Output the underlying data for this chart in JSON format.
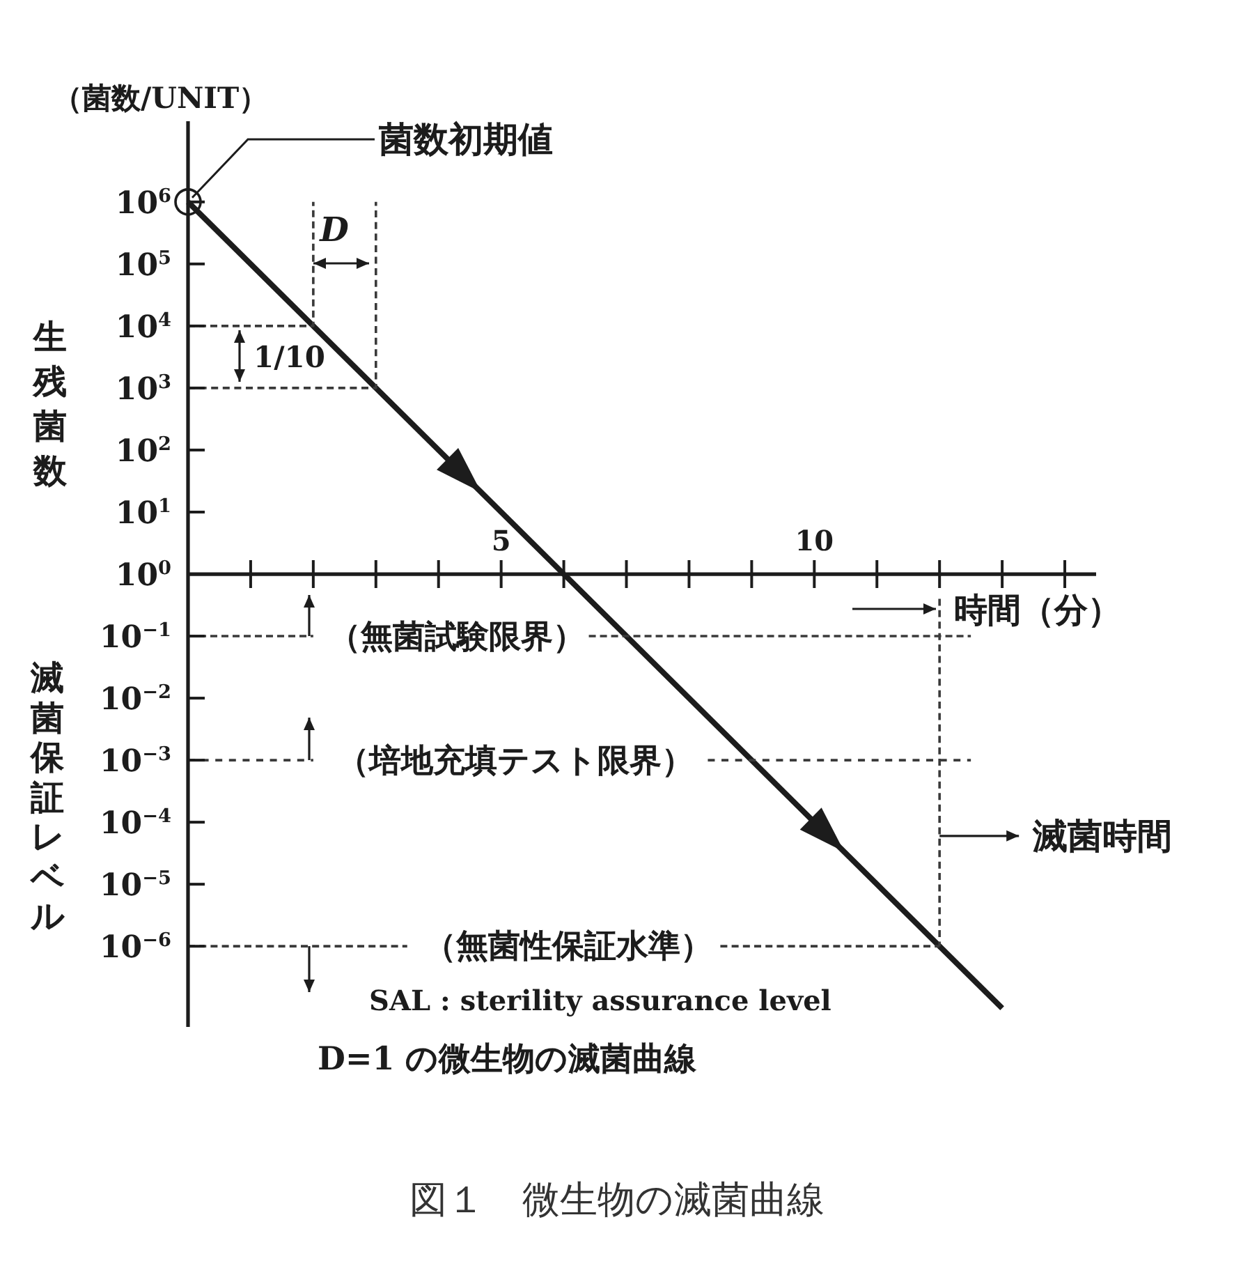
{
  "chart_data": [
    {
      "type": "line",
      "xlabel": "時間（分）",
      "ylabel": "生残菌数",
      "annotations": [
        "（菌数/UNIT）",
        {
          "text": "菌数初期値",
          "x": 0,
          "y": 1000000.0
        },
        "D",
        "1/10"
      ],
      "log": true,
      "xlim": [
        0,
        14.5
      ],
      "xticks": [
        {
          "value": 1,
          "label": null
        },
        {
          "value": 2,
          "label": null
        },
        {
          "value": 3,
          "label": null
        },
        {
          "value": 4,
          "label": null
        },
        5,
        {
          "value": 6,
          "label": null
        },
        {
          "value": 7,
          "label": null
        },
        {
          "value": 8,
          "label": null
        },
        {
          "value": 9,
          "label": null
        },
        10,
        {
          "value": 11,
          "label": null
        },
        {
          "value": 12,
          "label": null
        },
        {
          "value": 13,
          "label": null
        },
        {
          "value": 14,
          "label": null
        }
      ],
      "ylim": [
        1,
        20000000.0
      ],
      "yticks": [
        {
          "value": 1000000.0,
          "label": "10$^{6}$"
        },
        {
          "value": 100000.0,
          "label": "10$^{5}$"
        },
        {
          "value": 10000.0,
          "label": "10$^{4}$"
        },
        {
          "value": 1000.0,
          "label": "10$^{3}$"
        },
        {
          "value": 100.0,
          "label": "10$^{2}$"
        },
        {
          "value": 10.0,
          "label": "10$^{1}$"
        },
        {
          "value": 1,
          "label": "10$^{0}$"
        }
      ],
      "series": [
        {
          "x": [
            0,
            6
          ],
          "values": [
            1000000.0,
            1
          ],
          "color": "#1c1c1c",
          "line_style": "solid"
        },
        {
          "type": "scatter",
          "x": [
            0
          ],
          "values": [
            1000000.0
          ],
          "color": "#1c1c1c",
          "marker": "circle"
        },
        {
          "x": [
            0,
            2,
            2
          ],
          "values": [
            10000.0,
            10000.0,
            1000000.0
          ],
          "color": "#3a3a3a",
          "line_style": "dashed"
        },
        {
          "x": [
            0,
            3,
            3
          ],
          "values": [
            1000.0,
            1000.0,
            1000000.0
          ],
          "color": "#3a3a3a",
          "line_style": "dashed"
        }
      ]
    },
    {
      "type": "line",
      "title": "図１　微生物の滅菌曲線",
      "ylabel": "滅菌保証レベル",
      "annotations": [
        "（無菌試験限界）",
        "（培地充填テスト限界）",
        "（無菌性保証水準）",
        {
          "text": "滅菌時間",
          "x": 12,
          "y": 6e-05
        },
        "SAL : sterility assurance level",
        "D=1 の微生物の滅菌曲線"
      ],
      "log": true,
      "xlim": [
        0,
        14.5
      ],
      "xticks": [
        {
          "value": 1,
          "label": null
        },
        {
          "value": 2,
          "label": null
        },
        {
          "value": 3,
          "label": null
        },
        {
          "value": 4,
          "label": null
        },
        {
          "value": 5,
          "label": null
        },
        {
          "value": 6,
          "label": null
        },
        {
          "value": 7,
          "label": null
        },
        {
          "value": 8,
          "label": null
        },
        {
          "value": 9,
          "label": null
        },
        {
          "value": 10,
          "label": null
        },
        {
          "value": 11,
          "label": null
        },
        {
          "value": 12,
          "label": null
        },
        {
          "value": 13,
          "label": null
        },
        {
          "value": 14,
          "label": null
        }
      ],
      "tick_labels": "y",
      "ylim": [
        5e-08,
        1
      ],
      "yticks": [
        {
          "value": 0.1,
          "label": "10$^{−1}$"
        },
        {
          "value": 0.01,
          "label": "10$^{−2}$"
        },
        {
          "value": 0.001,
          "label": "10$^{−3}$"
        },
        {
          "value": 0.0001,
          "label": "10$^{−4}$"
        },
        {
          "value": 1e-05,
          "label": "10$^{−5}$"
        },
        {
          "value": 1e-06,
          "label": "10$^{−6}$"
        }
      ],
      "series": [
        {
          "x": [
            6,
            13
          ],
          "values": [
            1,
            1e-07
          ],
          "color": "#1c1c1c",
          "line_style": "solid"
        },
        {
          "x": [
            0,
            2,
            4,
            6.4,
            12.5
          ],
          "values": [
            0.1,
            0.1,
            null,
            0.1,
            0.1
          ],
          "color": "#3a3a3a",
          "line_style": "dashed"
        },
        {
          "x": [
            0,
            2,
            5,
            8.3,
            12.5
          ],
          "values": [
            0.001,
            0.001,
            null,
            0.001,
            0.001
          ],
          "color": "#3a3a3a",
          "line_style": "dashed"
        },
        {
          "x": [
            0,
            3.5,
            6,
            8.5,
            12
          ],
          "values": [
            1e-06,
            1e-06,
            null,
            1e-06,
            1e-06
          ],
          "color": "#3a3a3a",
          "line_style": "dashed"
        },
        {
          "x": [
            12,
            12
          ],
          "values": [
            0.4,
            1e-06
          ],
          "color": "#3a3a3a",
          "line_style": "dashed"
        }
      ]
    }
  ]
}
